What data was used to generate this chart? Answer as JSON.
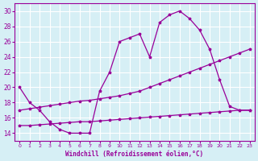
{
  "xlabel": "Windchill (Refroidissement éolien,°C)",
  "background_color": "#d6eff5",
  "grid_color": "#ffffff",
  "line_color": "#990099",
  "xlim": [
    -0.5,
    23.5
  ],
  "ylim": [
    13,
    31
  ],
  "yticks": [
    14,
    16,
    18,
    20,
    22,
    24,
    26,
    28,
    30
  ],
  "xticks": [
    0,
    1,
    2,
    3,
    4,
    5,
    6,
    7,
    8,
    9,
    10,
    11,
    12,
    13,
    14,
    15,
    16,
    17,
    18,
    19,
    20,
    21,
    22,
    23
  ],
  "curve1_x": [
    0,
    1,
    2,
    3,
    4,
    5,
    6,
    7,
    8,
    9,
    10,
    11,
    12,
    13,
    14,
    15,
    16,
    17,
    18,
    19,
    20,
    21,
    22,
    23
  ],
  "curve1_y": [
    20,
    18,
    17,
    15.5,
    14.5,
    14,
    14,
    14,
    19.5,
    22,
    26,
    26.5,
    27,
    24,
    28.5,
    29.5,
    30,
    29,
    27.5,
    25,
    21,
    17.5,
    17,
    17
  ],
  "curve2_x": [
    0,
    1,
    2,
    3,
    4,
    5,
    6,
    7,
    8,
    9,
    10,
    11,
    12,
    13,
    14,
    15,
    16,
    17,
    18,
    19,
    20,
    21,
    22,
    23
  ],
  "curve2_y": [
    17,
    17.2,
    17.4,
    17.6,
    17.8,
    18.0,
    18.2,
    18.3,
    18.5,
    18.7,
    18.9,
    19.2,
    19.5,
    20.0,
    20.5,
    21.0,
    21.5,
    22.0,
    22.5,
    23.0,
    23.5,
    24.0,
    24.5,
    25.0
  ],
  "curve3_x": [
    0,
    1,
    2,
    3,
    4,
    5,
    6,
    7,
    8,
    9,
    10,
    11,
    12,
    13,
    14,
    15,
    16,
    17,
    18,
    19,
    20,
    21,
    22,
    23
  ],
  "curve3_y": [
    15.0,
    15.0,
    15.1,
    15.2,
    15.3,
    15.4,
    15.5,
    15.5,
    15.6,
    15.7,
    15.8,
    15.9,
    16.0,
    16.1,
    16.2,
    16.3,
    16.4,
    16.5,
    16.6,
    16.7,
    16.8,
    16.9,
    17.0,
    17.0
  ]
}
